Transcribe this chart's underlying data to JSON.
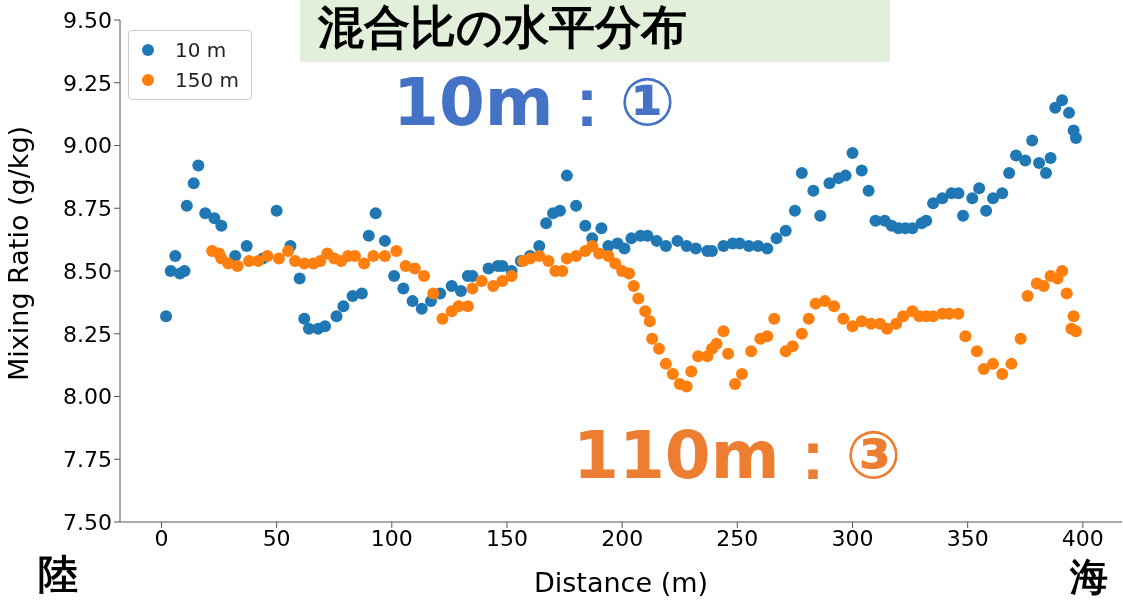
{
  "chart_data": {
    "type": "scatter",
    "title": "混合比の水平分布",
    "xlabel": "Distance (m)",
    "ylabel": "Mixing Ratio (g/kg)",
    "annotations": [
      "10m：①",
      "110m：③",
      "陸",
      "海"
    ],
    "xlim": [
      -18,
      417
    ],
    "xticks": [
      0,
      50,
      100,
      150,
      200,
      250,
      300,
      350,
      400
    ],
    "ylim": [
      7.5,
      9.5
    ],
    "yticks": [
      {
        "value": 7.5,
        "label": "7.50"
      },
      {
        "value": 7.75,
        "label": "7.75"
      },
      {
        "value": 8,
        "label": "8.00"
      },
      {
        "value": 8.25,
        "label": "8.25"
      },
      {
        "value": 8.5,
        "label": "8.50"
      },
      {
        "value": 8.75,
        "label": "8.75"
      },
      {
        "value": 9,
        "label": "9.00"
      },
      {
        "value": 9.25,
        "label": "9.25"
      },
      {
        "value": 9.5,
        "label": "9.50"
      }
    ],
    "grid": false,
    "legend": "top left",
    "marker": "circle",
    "series": [
      {
        "name": "10 m",
        "color": "#1f77b4",
        "x": [
          2,
          4,
          6,
          8,
          10,
          11,
          14,
          16,
          19,
          23,
          26,
          32,
          37,
          44,
          50,
          56,
          60,
          62,
          64,
          68,
          71,
          76,
          79,
          83,
          87,
          90,
          93,
          97,
          101,
          105,
          109,
          113,
          117,
          121,
          126,
          130,
          133,
          135,
          142,
          146,
          148,
          152,
          156,
          160,
          164,
          167,
          170,
          173,
          176,
          180,
          184,
          187,
          191,
          194,
          198,
          201,
          204,
          208,
          211,
          215,
          219,
          224,
          228,
          232,
          237,
          239,
          244,
          248,
          251,
          255,
          259,
          263,
          267,
          271,
          275,
          278,
          283,
          286,
          290,
          294,
          297,
          300,
          304,
          307,
          310,
          314,
          317,
          320,
          323,
          326,
          330,
          332,
          335,
          339,
          343,
          346,
          348,
          352,
          355,
          358,
          361,
          365,
          368,
          371,
          375,
          378,
          381,
          384,
          386,
          388,
          391,
          394,
          396,
          397
        ],
        "values": [
          8.32,
          8.5,
          8.56,
          8.49,
          8.5,
          8.76,
          8.85,
          8.92,
          8.73,
          8.71,
          8.68,
          8.56,
          8.6,
          8.55,
          8.74,
          8.6,
          8.47,
          8.31,
          8.27,
          8.27,
          8.28,
          8.32,
          8.36,
          8.4,
          8.41,
          8.64,
          8.73,
          8.62,
          8.48,
          8.43,
          8.38,
          8.35,
          8.38,
          8.41,
          8.44,
          8.42,
          8.48,
          8.48,
          8.51,
          8.52,
          8.52,
          8.5,
          8.54,
          8.56,
          8.6,
          8.69,
          8.73,
          8.74,
          8.88,
          8.76,
          8.68,
          8.63,
          8.67,
          8.6,
          8.61,
          8.59,
          8.63,
          8.64,
          8.64,
          8.62,
          8.6,
          8.62,
          8.6,
          8.59,
          8.58,
          8.58,
          8.6,
          8.61,
          8.61,
          8.6,
          8.6,
          8.59,
          8.63,
          8.66,
          8.74,
          8.89,
          8.82,
          8.72,
          8.85,
          8.87,
          8.88,
          8.97,
          8.9,
          8.82,
          8.7,
          8.7,
          8.68,
          8.67,
          8.67,
          8.67,
          8.69,
          8.7,
          8.77,
          8.79,
          8.81,
          8.81,
          8.72,
          8.79,
          8.83,
          8.74,
          8.79,
          8.81,
          8.89,
          8.96,
          8.94,
          9.02,
          8.93,
          8.89,
          8.95,
          9.15,
          9.18,
          9.13,
          9.06,
          9.03
        ]
      },
      {
        "name": "150 m",
        "color": "#ff7f0e",
        "x": [
          22,
          25,
          26,
          29,
          33,
          38,
          42,
          46,
          51,
          55,
          58,
          62,
          66,
          69,
          72,
          75,
          78,
          81,
          84,
          88,
          92,
          97,
          102,
          106,
          110,
          114,
          118,
          122,
          126,
          129,
          133,
          135,
          139,
          144,
          148,
          152,
          157,
          160,
          164,
          168,
          171,
          174,
          176,
          180,
          184,
          187,
          190,
          194,
          197,
          200,
          203,
          205,
          207,
          210,
          212,
          213,
          216,
          219,
          222,
          225,
          228,
          230,
          233,
          237,
          239,
          241,
          244,
          246,
          249,
          252,
          256,
          260,
          263,
          266,
          271,
          274,
          278,
          281,
          284,
          288,
          292,
          296,
          300,
          304,
          308,
          312,
          315,
          319,
          322,
          326,
          329,
          332,
          335,
          339,
          342,
          346,
          349,
          354,
          357,
          361,
          365,
          369,
          373,
          376,
          380,
          383,
          386,
          389,
          391,
          393,
          395,
          396,
          397
        ],
        "values": [
          8.58,
          8.57,
          8.55,
          8.53,
          8.52,
          8.54,
          8.54,
          8.56,
          8.55,
          8.58,
          8.54,
          8.53,
          8.53,
          8.54,
          8.57,
          8.55,
          8.54,
          8.56,
          8.56,
          8.53,
          8.56,
          8.56,
          8.58,
          8.52,
          8.51,
          8.48,
          8.41,
          8.31,
          8.34,
          8.36,
          8.36,
          8.43,
          8.46,
          8.44,
          8.46,
          8.48,
          8.54,
          8.55,
          8.56,
          8.54,
          8.5,
          8.5,
          8.55,
          8.56,
          8.58,
          8.6,
          8.57,
          8.56,
          8.53,
          8.5,
          8.49,
          8.44,
          8.39,
          8.34,
          8.3,
          8.23,
          8.19,
          8.13,
          8.09,
          8.05,
          8.04,
          8.1,
          8.16,
          8.16,
          8.19,
          8.21,
          8.26,
          8.17,
          8.05,
          8.09,
          8.18,
          8.23,
          8.24,
          8.31,
          8.18,
          8.2,
          8.25,
          8.31,
          8.37,
          8.38,
          8.36,
          8.31,
          8.28,
          8.3,
          8.29,
          8.29,
          8.27,
          8.29,
          8.32,
          8.34,
          8.32,
          8.32,
          8.32,
          8.33,
          8.33,
          8.33,
          8.24,
          8.18,
          8.11,
          8.13,
          8.09,
          8.13,
          8.23,
          8.4,
          8.45,
          8.44,
          8.48,
          8.47,
          8.5,
          8.41,
          8.27,
          8.32,
          8.26
        ]
      }
    ]
  }
}
